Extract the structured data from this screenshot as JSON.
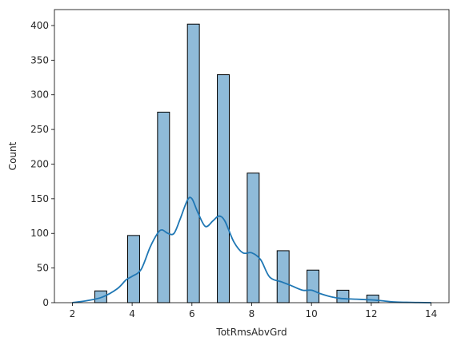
{
  "chart_data": {
    "type": "bar",
    "title": "",
    "xlabel": "TotRmsAbvGrd",
    "ylabel": "Count",
    "xlim": [
      1.4,
      14.6
    ],
    "ylim": [
      0,
      423
    ],
    "xticks": [
      2,
      4,
      6,
      8,
      10,
      12,
      14
    ],
    "yticks": [
      0,
      50,
      100,
      150,
      200,
      250,
      300,
      350,
      400
    ],
    "grid": false,
    "bar_color": "#1f77b4",
    "bar_alpha": 0.5,
    "bar_edge_color": "#000000",
    "kde_color": "#1f77b4",
    "bins": [
      {
        "x0": 2.75,
        "x1": 3.15,
        "value": 17
      },
      {
        "x0": 3.85,
        "x1": 4.25,
        "value": 97
      },
      {
        "x0": 4.85,
        "x1": 5.25,
        "value": 275
      },
      {
        "x0": 5.85,
        "x1": 6.25,
        "value": 402
      },
      {
        "x0": 6.85,
        "x1": 7.25,
        "value": 329
      },
      {
        "x0": 7.85,
        "x1": 8.25,
        "value": 187
      },
      {
        "x0": 8.85,
        "x1": 9.25,
        "value": 75
      },
      {
        "x0": 9.85,
        "x1": 10.25,
        "value": 47
      },
      {
        "x0": 10.85,
        "x1": 11.25,
        "value": 18
      },
      {
        "x0": 11.85,
        "x1": 12.25,
        "value": 11
      }
    ],
    "kde": [
      [
        2.0,
        0
      ],
      [
        2.5,
        3
      ],
      [
        3.0,
        8
      ],
      [
        3.5,
        20
      ],
      [
        3.8,
        33
      ],
      [
        4.0,
        38
      ],
      [
        4.3,
        48
      ],
      [
        4.6,
        80
      ],
      [
        4.85,
        100
      ],
      [
        5.0,
        105
      ],
      [
        5.2,
        100
      ],
      [
        5.4,
        100
      ],
      [
        5.6,
        120
      ],
      [
        5.85,
        148
      ],
      [
        6.0,
        150
      ],
      [
        6.2,
        130
      ],
      [
        6.45,
        110
      ],
      [
        6.7,
        118
      ],
      [
        6.9,
        125
      ],
      [
        7.1,
        118
      ],
      [
        7.4,
        88
      ],
      [
        7.7,
        72
      ],
      [
        8.0,
        72
      ],
      [
        8.3,
        62
      ],
      [
        8.6,
        37
      ],
      [
        9.0,
        30
      ],
      [
        9.3,
        25
      ],
      [
        9.7,
        18
      ],
      [
        10.0,
        18
      ],
      [
        10.3,
        13
      ],
      [
        10.7,
        8
      ],
      [
        11.0,
        6
      ],
      [
        11.5,
        5
      ],
      [
        12.0,
        4
      ],
      [
        12.3,
        3
      ],
      [
        12.8,
        1
      ],
      [
        13.5,
        0.3
      ],
      [
        14.0,
        0
      ]
    ]
  }
}
